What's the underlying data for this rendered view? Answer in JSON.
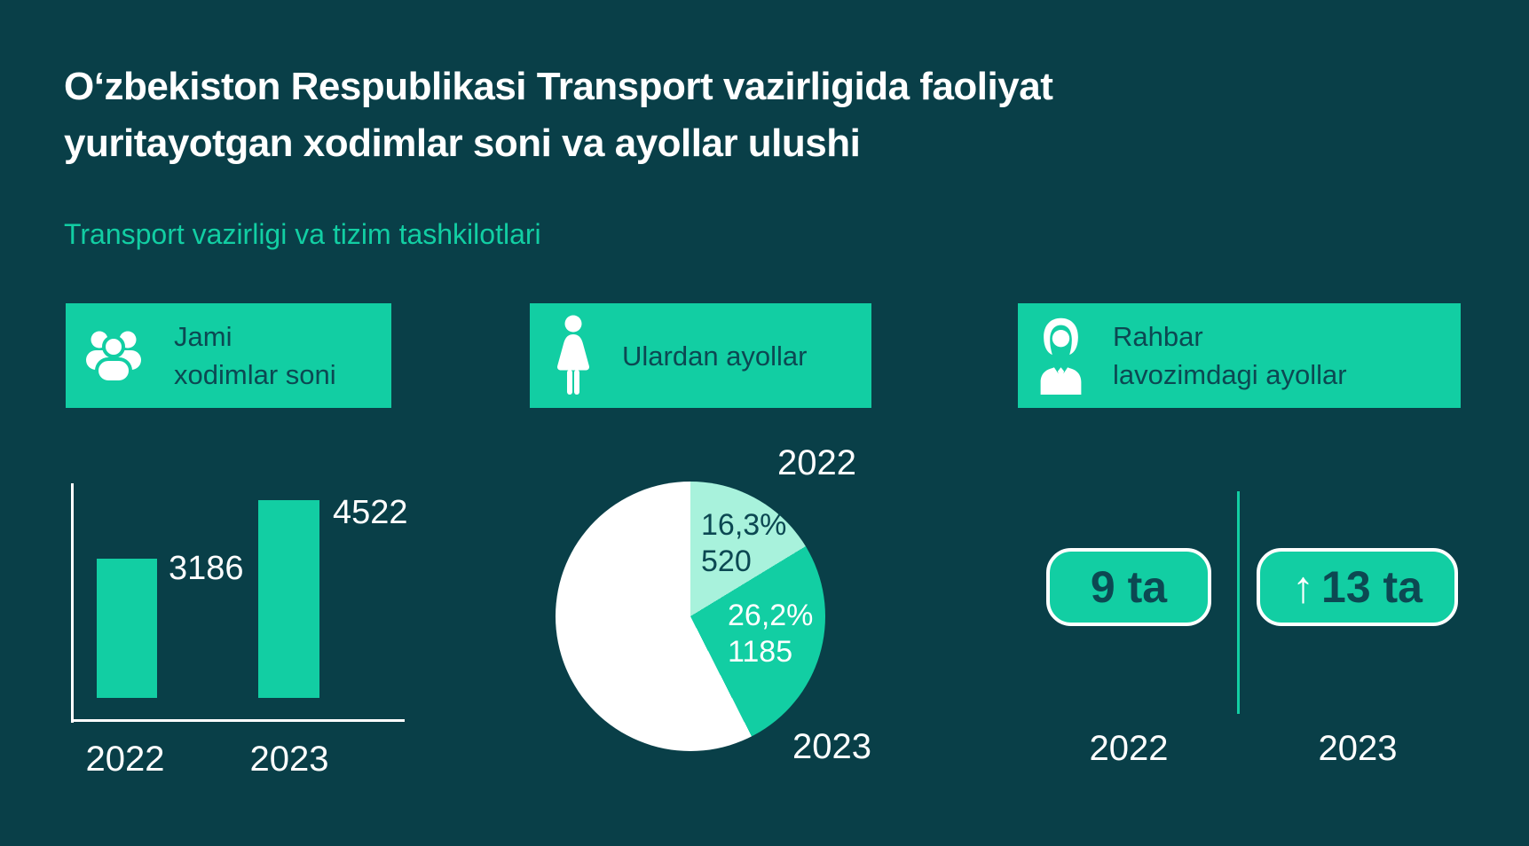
{
  "header": {
    "title_lines": [
      "Oʻzbekiston Respublikasi Transport vazirligida faoliyat",
      "yuritayotgan xodimlar soni va ayollar ulushi"
    ],
    "subtitle": "Transport vazirligi va tizim tashkilotlari"
  },
  "colors": {
    "background": "#093F48",
    "accent_green": "#12CEA3",
    "mint": "#A8F2DC",
    "white": "#FFFFFF",
    "dark_text": "#0C4852"
  },
  "cards": [
    {
      "icon": "people-group-icon",
      "lines": [
        "Jami",
        "xodimlar soni"
      ]
    },
    {
      "icon": "woman-icon",
      "lines": [
        "Ulardan ayollar"
      ]
    },
    {
      "icon": "businesswoman-icon",
      "lines": [
        "Rahbar",
        "lavozimdagi ayollar"
      ]
    }
  ],
  "chart_data": [
    {
      "type": "bar",
      "title": "Jami xodimlar soni",
      "categories": [
        "2022",
        "2023"
      ],
      "values": [
        3186,
        4522
      ],
      "bar_color": "#12CEA3",
      "axis_color": "#FFFFFF",
      "ylim": [
        0,
        4522
      ]
    },
    {
      "type": "pie",
      "title": "Ulardan ayollar",
      "slices": [
        {
          "label": "2022",
          "percent": 16.3,
          "value": 520,
          "color": "#A8F2DC"
        },
        {
          "label": "2023",
          "percent": 26.2,
          "value": 1185,
          "color": "#12CEA3"
        },
        {
          "label": "rest",
          "percent": 57.5,
          "value": null,
          "color": "#FFFFFF"
        }
      ],
      "start_angle_deg": 0,
      "direction": "clockwise"
    },
    {
      "type": "table",
      "title": "Rahbar lavozimdagi ayollar",
      "categories": [
        "2022",
        "2023"
      ],
      "values": [
        9,
        13
      ],
      "unit": "ta",
      "trend_2023": "up"
    }
  ],
  "stats": {
    "bar": {
      "value_labels": [
        "3186",
        "4522"
      ],
      "years": [
        "2022",
        "2023"
      ]
    },
    "pie": {
      "year_top": "2022",
      "year_bottom": "2023",
      "slice_labels": [
        {
          "percent": "16,3%",
          "value": "520"
        },
        {
          "percent": "26,2%",
          "value": "1185"
        }
      ]
    },
    "leaders": {
      "arrow": "↑",
      "badges": [
        "9 ta",
        "13 ta"
      ],
      "years": [
        "2022",
        "2023"
      ]
    }
  }
}
